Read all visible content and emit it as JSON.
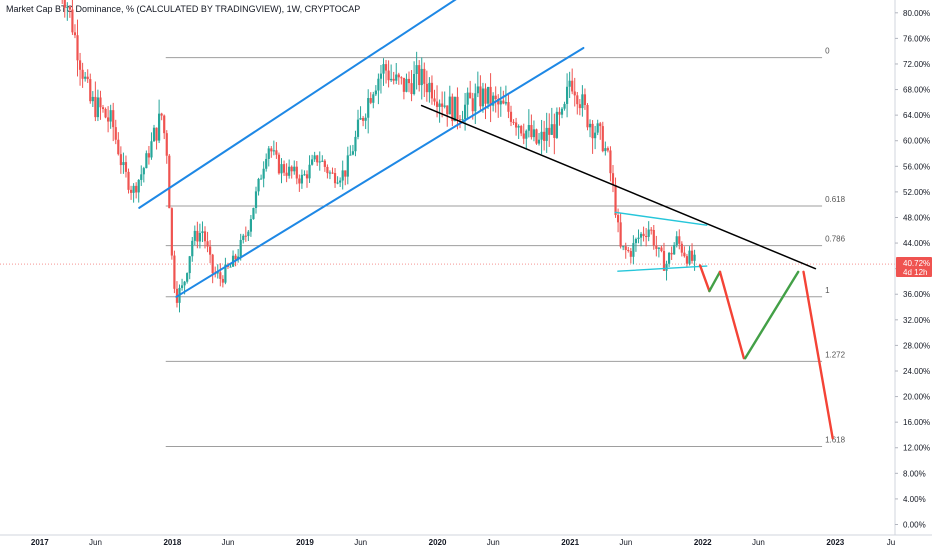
{
  "header": {
    "title": "Market Cap BTC Dominance, % (CALCULATED BY TRADINGVIEW), 1W, CRYPTOCAP"
  },
  "colors": {
    "up": "#26a69a",
    "down": "#ef5350",
    "channel": "#1e88e5",
    "trend": "#000000",
    "fib": "#9e9e9e",
    "triangle": "#26c6da",
    "projection_down": "#f44336",
    "projection_up": "#43a047",
    "price_tag": "#ef5350"
  },
  "price_tag": {
    "value": "40.72%",
    "timer": "4d 12h"
  },
  "chart_data": {
    "type": "candlestick",
    "y_axis": {
      "ticks": [
        "80.00%",
        "76.00%",
        "72.00%",
        "68.00%",
        "64.00%",
        "60.00%",
        "56.00%",
        "52.00%",
        "48.00%",
        "44.00%",
        "40.00%",
        "36.00%",
        "32.00%",
        "28.00%",
        "24.00%",
        "20.00%",
        "16.00%",
        "12.00%",
        "8.00%",
        "4.00%",
        "0.00%"
      ],
      "ylim": [
        0,
        80
      ]
    },
    "x_axis": {
      "ticks": [
        "2017",
        "Jun",
        "2018",
        "Jun",
        "2019",
        "Jun",
        "2020",
        "Jun",
        "2021",
        "Jun",
        "2022",
        "Jun",
        "2023",
        "Ju"
      ],
      "tick_dates": [
        2017.0,
        2017.42,
        2018.0,
        2018.42,
        2019.0,
        2019.42,
        2020.0,
        2020.42,
        2021.0,
        2021.42,
        2022.0,
        2022.42,
        2023.0,
        2023.42
      ],
      "xlim": [
        2016.7,
        2023.45
      ]
    },
    "fib_levels": [
      {
        "label": "0",
        "value": 73.0
      },
      {
        "label": "0.618",
        "value": 49.8
      },
      {
        "label": "0.786",
        "value": 43.6
      },
      {
        "label": "1",
        "value": 35.6
      },
      {
        "label": "1.272",
        "value": 25.5
      },
      {
        "label": "1.618",
        "value": 12.2
      }
    ],
    "current_value": 40.72,
    "close_path": [
      [
        2017.15,
        85.0
      ],
      [
        2017.22,
        80.5
      ],
      [
        2017.3,
        73.0
      ],
      [
        2017.38,
        66.0
      ],
      [
        2017.45,
        65.0
      ],
      [
        2017.55,
        62.5
      ],
      [
        2017.62,
        56.0
      ],
      [
        2017.7,
        52.0
      ],
      [
        2017.78,
        55.5
      ],
      [
        2017.85,
        60.0
      ],
      [
        2017.92,
        64.0
      ],
      [
        2017.96,
        58.0
      ],
      [
        2018.0,
        40.0
      ],
      [
        2018.03,
        35.8
      ],
      [
        2018.08,
        37.0
      ],
      [
        2018.15,
        44.5
      ],
      [
        2018.23,
        46.0
      ],
      [
        2018.3,
        39.5
      ],
      [
        2018.36,
        38.5
      ],
      [
        2018.45,
        40.5
      ],
      [
        2018.55,
        45.0
      ],
      [
        2018.65,
        53.0
      ],
      [
        2018.72,
        59.5
      ],
      [
        2018.8,
        56.0
      ],
      [
        2018.9,
        55.0
      ],
      [
        2018.98,
        54.0
      ],
      [
        2019.1,
        57.5
      ],
      [
        2019.2,
        54.5
      ],
      [
        2019.3,
        55.0
      ],
      [
        2019.38,
        60.0
      ],
      [
        2019.45,
        65.0
      ],
      [
        2019.52,
        69.0
      ],
      [
        2019.6,
        71.5
      ],
      [
        2019.66,
        69.5
      ],
      [
        2019.75,
        68.5
      ],
      [
        2019.85,
        70.0
      ],
      [
        2019.95,
        68.5
      ],
      [
        2020.05,
        66.0
      ],
      [
        2020.15,
        64.5
      ],
      [
        2020.25,
        66.0
      ],
      [
        2020.35,
        67.0
      ],
      [
        2020.45,
        65.5
      ],
      [
        2020.55,
        64.5
      ],
      [
        2020.65,
        62.0
      ],
      [
        2020.75,
        59.5
      ],
      [
        2020.85,
        61.5
      ],
      [
        2020.95,
        63.5
      ],
      [
        2021.0,
        70.0
      ],
      [
        2021.05,
        68.0
      ],
      [
        2021.12,
        64.0
      ],
      [
        2021.2,
        61.5
      ],
      [
        2021.28,
        58.0
      ],
      [
        2021.33,
        51.5
      ],
      [
        2021.38,
        43.0
      ],
      [
        2021.45,
        42.5
      ],
      [
        2021.52,
        45.0
      ],
      [
        2021.6,
        46.5
      ],
      [
        2021.66,
        42.5
      ],
      [
        2021.72,
        40.5
      ],
      [
        2021.8,
        44.5
      ],
      [
        2021.88,
        42.0
      ],
      [
        2021.95,
        40.72
      ]
    ]
  }
}
